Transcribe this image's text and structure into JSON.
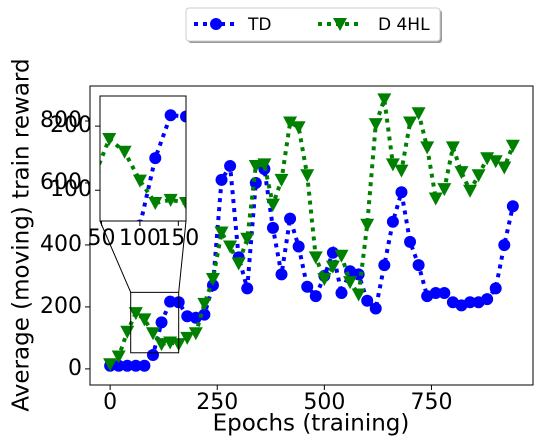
{
  "chart_data": {
    "type": "line",
    "xlabel": "Epochs (training)",
    "ylabel": "Average (moving) train reward",
    "x": [
      0,
      20,
      40,
      60,
      80,
      100,
      120,
      140,
      160,
      180,
      200,
      220,
      240,
      260,
      280,
      300,
      320,
      340,
      360,
      380,
      400,
      420,
      440,
      460,
      480,
      500,
      520,
      540,
      560,
      580,
      600,
      620,
      640,
      660,
      680,
      700,
      720,
      740,
      760,
      780,
      800,
      820,
      840,
      860,
      880,
      900,
      920,
      940
    ],
    "series": [
      {
        "name": "TD",
        "color": "#0000ff",
        "marker": "circle",
        "values": [
          10,
          10,
          10,
          10,
          10,
          45,
          150,
          217,
          215,
          170,
          165,
          175,
          270,
          610,
          655,
          360,
          260,
          600,
          645,
          455,
          305,
          485,
          395,
          265,
          235,
          300,
          375,
          245,
          315,
          305,
          220,
          195,
          335,
          475,
          570,
          410,
          335,
          235,
          245,
          245,
          215,
          205,
          215,
          215,
          225,
          260,
          400,
          525
        ]
      },
      {
        "name": "D 4HL",
        "color": "#008000",
        "marker": "triangle-down",
        "values": [
          15,
          40,
          120,
          180,
          160,
          115,
          80,
          85,
          80,
          100,
          115,
          210,
          290,
          440,
          395,
          340,
          420,
          655,
          660,
          530,
          610,
          795,
          780,
          625,
          360,
          290,
          330,
          365,
          280,
          240,
          465,
          790,
          870,
          660,
          640,
          795,
          825,
          715,
          550,
          580,
          715,
          635,
          575,
          625,
          680,
          670,
          650,
          720
        ]
      }
    ],
    "xlim": [
      -47,
      987
    ],
    "ylim": [
      -52,
      913
    ],
    "xticks": [
      0,
      250,
      500,
      750
    ],
    "yticks": [
      0,
      200,
      400,
      600,
      800
    ],
    "legend": "upper center outside",
    "inset": {
      "xlim": [
        48,
        160
      ],
      "ylim": [
        52,
        247
      ],
      "xticks": [
        50,
        100,
        150
      ],
      "yticks": [
        100,
        200
      ]
    }
  }
}
